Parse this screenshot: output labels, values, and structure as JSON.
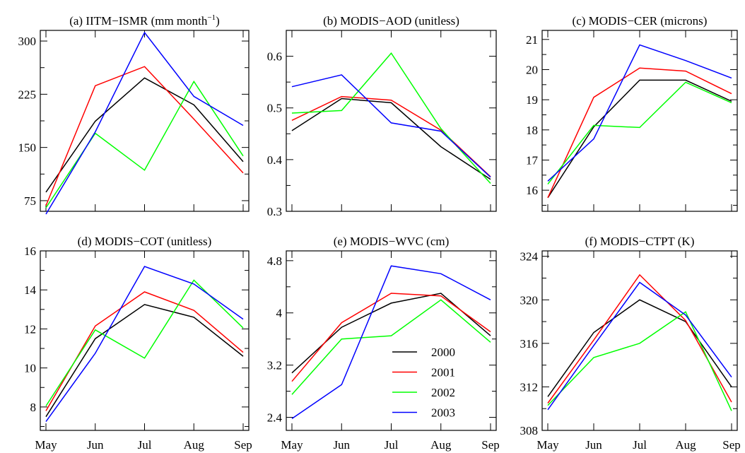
{
  "months": [
    "May",
    "Jun",
    "Jul",
    "Aug",
    "Sep"
  ],
  "legend": {
    "entries": [
      {
        "label": "2000",
        "color": "#000000"
      },
      {
        "label": "2001",
        "color": "#ff0000"
      },
      {
        "label": "2002",
        "color": "#00ff00"
      },
      {
        "label": "2003",
        "color": "#0000ff"
      }
    ]
  },
  "chart_data": [
    {
      "type": "line",
      "title": "(a) IITM−ISMR (mm month",
      "title_sup": "−1",
      "title_end": ")",
      "x": [
        "May",
        "Jun",
        "Jul",
        "Aug",
        "Sep"
      ],
      "ylim": [
        60,
        315
      ],
      "yticks": [
        75,
        150,
        225,
        300
      ],
      "series": [
        {
          "name": "2000",
          "color": "#000000",
          "values": [
            87,
            187,
            248,
            210,
            130
          ]
        },
        {
          "name": "2001",
          "color": "#ff0000",
          "values": [
            68,
            237,
            264,
            190,
            114
          ]
        },
        {
          "name": "2002",
          "color": "#00ff00",
          "values": [
            65,
            170,
            118,
            243,
            138
          ]
        },
        {
          "name": "2003",
          "color": "#0000ff",
          "values": [
            56,
            172,
            312,
            222,
            181
          ]
        }
      ]
    },
    {
      "type": "line",
      "title": "(b) MODIS−AOD (unitless)",
      "x": [
        "May",
        "Jun",
        "Jul",
        "Aug",
        "Sep"
      ],
      "ylim": [
        0.3,
        0.65
      ],
      "yticks": [
        0.3,
        0.4,
        0.5,
        0.6
      ],
      "series": [
        {
          "name": "2000",
          "color": "#000000",
          "values": [
            0.456,
            0.518,
            0.51,
            0.425,
            0.362
          ]
        },
        {
          "name": "2001",
          "color": "#ff0000",
          "values": [
            0.476,
            0.522,
            0.515,
            0.457,
            0.367
          ]
        },
        {
          "name": "2002",
          "color": "#00ff00",
          "values": [
            0.49,
            0.495,
            0.606,
            0.46,
            0.354
          ]
        },
        {
          "name": "2003",
          "color": "#0000ff",
          "values": [
            0.541,
            0.564,
            0.471,
            0.455,
            0.366
          ]
        }
      ]
    },
    {
      "type": "line",
      "title": "(c) MODIS−CER (microns)",
      "x": [
        "May",
        "Jun",
        "Jul",
        "Aug",
        "Sep"
      ],
      "ylim": [
        15.3,
        21.3
      ],
      "yticks": [
        16,
        17,
        18,
        19,
        20,
        21
      ],
      "series": [
        {
          "name": "2000",
          "color": "#000000",
          "values": [
            15.75,
            18.1,
            19.65,
            19.65,
            18.95
          ]
        },
        {
          "name": "2001",
          "color": "#ff0000",
          "values": [
            15.75,
            19.08,
            20.05,
            19.95,
            19.2
          ]
        },
        {
          "name": "2002",
          "color": "#00ff00",
          "values": [
            16.2,
            18.15,
            18.08,
            19.58,
            18.9
          ]
        },
        {
          "name": "2003",
          "color": "#0000ff",
          "values": [
            16.3,
            17.7,
            20.82,
            20.3,
            19.72
          ]
        }
      ]
    },
    {
      "type": "line",
      "title": "(d) MODIS−COT (unitless)",
      "x": [
        "May",
        "Jun",
        "Jul",
        "Aug",
        "Sep"
      ],
      "ylim": [
        6.8,
        16
      ],
      "yticks": [
        8,
        10,
        12,
        14,
        16
      ],
      "series": [
        {
          "name": "2000",
          "color": "#000000",
          "values": [
            7.5,
            11.5,
            13.25,
            12.6,
            10.6
          ]
        },
        {
          "name": "2001",
          "color": "#ff0000",
          "values": [
            7.8,
            12.15,
            13.9,
            12.95,
            10.8
          ]
        },
        {
          "name": "2002",
          "color": "#00ff00",
          "values": [
            8.05,
            11.95,
            10.5,
            14.5,
            12.05
          ]
        },
        {
          "name": "2003",
          "color": "#0000ff",
          "values": [
            7.25,
            10.75,
            15.2,
            14.3,
            12.5
          ]
        }
      ]
    },
    {
      "type": "line",
      "title": "(e) MODIS−WVC (cm)",
      "x": [
        "May",
        "Jun",
        "Jul",
        "Aug",
        "Sep"
      ],
      "ylim": [
        2.2,
        4.95
      ],
      "yticks": [
        2.4,
        3.2,
        4,
        4.8
      ],
      "series": [
        {
          "name": "2000",
          "color": "#000000",
          "values": [
            3.08,
            3.78,
            4.15,
            4.3,
            3.65
          ]
        },
        {
          "name": "2001",
          "color": "#ff0000",
          "values": [
            2.95,
            3.85,
            4.3,
            4.26,
            3.71
          ]
        },
        {
          "name": "2002",
          "color": "#00ff00",
          "values": [
            2.75,
            3.6,
            3.65,
            4.2,
            3.55
          ]
        },
        {
          "name": "2003",
          "color": "#0000ff",
          "values": [
            2.38,
            2.9,
            4.72,
            4.6,
            4.2
          ]
        }
      ]
    },
    {
      "type": "line",
      "title": "(f) MODIS−CTPT (K)",
      "x": [
        "May",
        "Jun",
        "Jul",
        "Aug",
        "Sep"
      ],
      "ylim": [
        308,
        324.5
      ],
      "yticks": [
        308,
        312,
        316,
        320,
        324
      ],
      "series": [
        {
          "name": "2000",
          "color": "#000000",
          "values": [
            311.1,
            317.0,
            320.0,
            318.0,
            312.0
          ]
        },
        {
          "name": "2001",
          "color": "#ff0000",
          "values": [
            310.5,
            316.3,
            322.3,
            318.1,
            310.6
          ]
        },
        {
          "name": "2002",
          "color": "#00ff00",
          "values": [
            310.3,
            314.7,
            316.0,
            318.9,
            309.8
          ]
        },
        {
          "name": "2003",
          "color": "#0000ff",
          "values": [
            309.9,
            315.8,
            321.6,
            318.6,
            312.9
          ]
        }
      ]
    }
  ]
}
